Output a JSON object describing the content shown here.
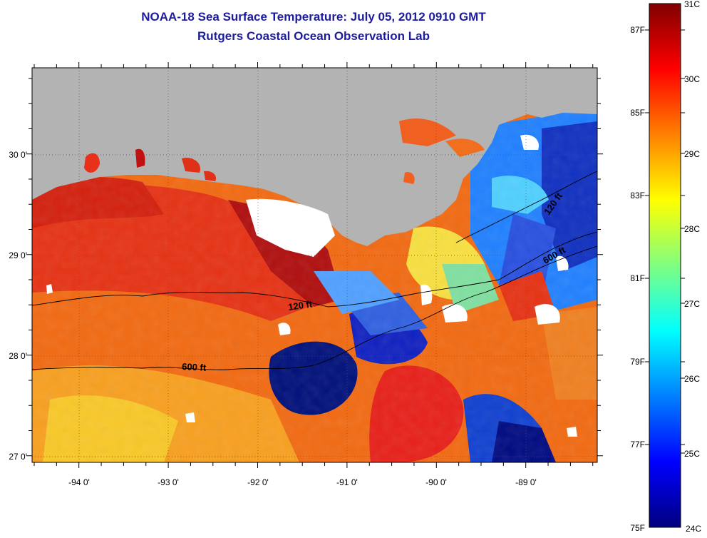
{
  "title": "NOAA-18 Sea Surface Temperature:  July 05, 2012 0910 GMT",
  "subtitle": "Rutgers Coastal Ocean Observation Lab",
  "axes": {
    "x_ticks": [
      "-94 0'",
      "-93 0'",
      "-92 0'",
      "-91 0'",
      "-90 0'",
      "-89 0'"
    ],
    "y_ticks": [
      "30 0'",
      "29 0'",
      "28 0'",
      "27 0'"
    ]
  },
  "contours": [
    {
      "label": "120 ft"
    },
    {
      "label": "600 ft"
    },
    {
      "label": "120 ft"
    },
    {
      "label": "600 ft"
    }
  ],
  "colorbar": {
    "f_labels": [
      "87F",
      "85F",
      "83F",
      "81F",
      "79F",
      "77F",
      "75F"
    ],
    "c_labels": [
      "31C",
      "30C",
      "29C",
      "28C",
      "27C",
      "26C",
      "25C",
      "24C"
    ],
    "stops": [
      "#800000",
      "#ff0000",
      "#ff8000",
      "#ffff00",
      "#80ff80",
      "#00ffff",
      "#0080ff",
      "#0000ff",
      "#000080"
    ]
  },
  "colors": {
    "land": "#b3b3b3",
    "cloud": "#ffffff",
    "title": "#1c1c9c"
  }
}
